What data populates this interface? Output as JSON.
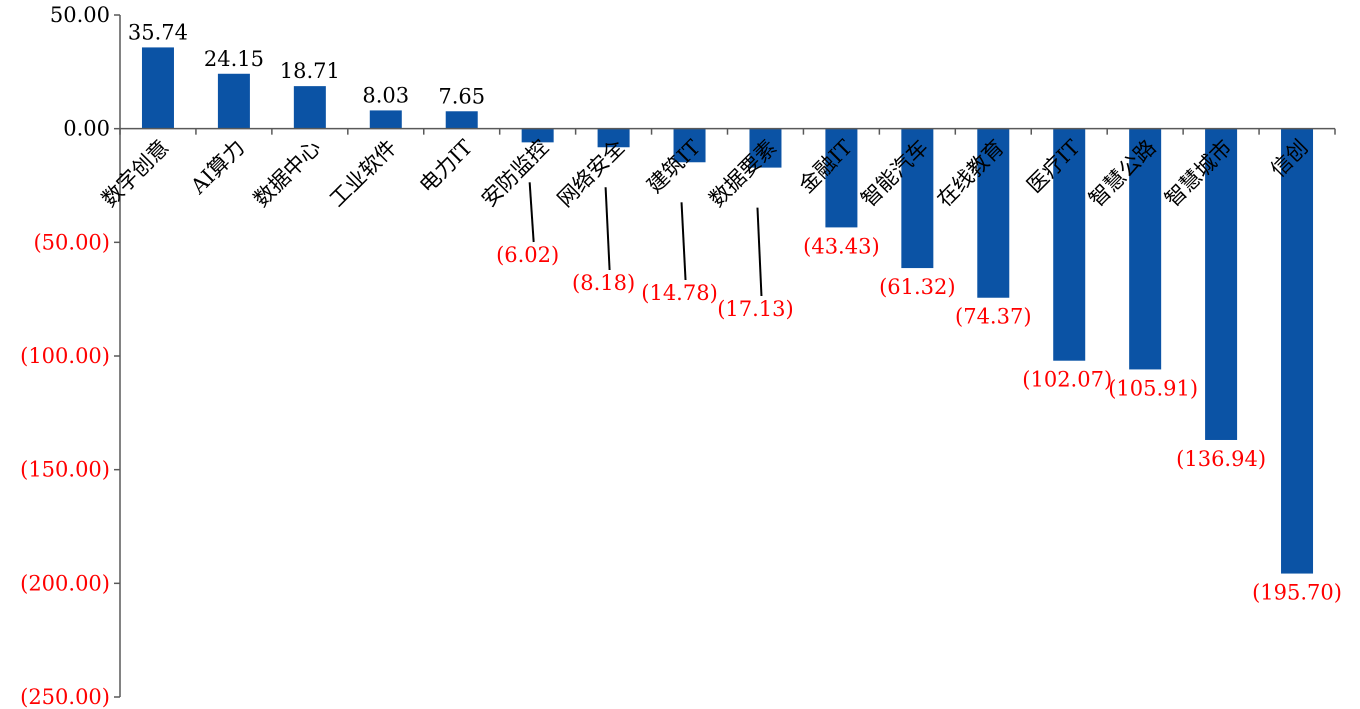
{
  "chart_data": {
    "type": "bar",
    "title": "",
    "xlabel": "",
    "ylabel": "",
    "ylim": [
      -250,
      50
    ],
    "yticks": [
      50,
      0,
      -50,
      -100,
      -150,
      -200,
      -250
    ],
    "ytick_labels": [
      "50.00",
      "0.00",
      "(50.00)",
      "(100.00)",
      "(150.00)",
      "(200.00)",
      "(250.00)"
    ],
    "grid": false,
    "legend": "none",
    "categories": [
      "数字创意",
      "AI算力",
      "数据中心",
      "工业软件",
      "电力IT",
      "安防监控",
      "网络安全",
      "建筑IT",
      "数据要素",
      "金融IT",
      "智能汽车",
      "在线教育",
      "医疗IT",
      "智慧公路",
      "智慧城市",
      "信创"
    ],
    "values": [
      35.74,
      24.15,
      18.71,
      8.03,
      7.65,
      -6.02,
      -8.18,
      -14.78,
      -17.13,
      -43.43,
      -61.32,
      -74.37,
      -102.07,
      -105.91,
      -136.94,
      -195.7
    ],
    "value_labels": [
      "35.74",
      "24.15",
      "18.71",
      "8.03",
      "7.65",
      "(6.02)",
      "(8.18)",
      "(14.78)",
      "(17.13)",
      "(43.43)",
      "(61.32)",
      "(74.37)",
      "(102.07)",
      "(105.91)",
      "(136.94)",
      "(195.70)"
    ],
    "colors": {
      "bar": "#0B53A5",
      "positive_label": "#000000",
      "negative_label": "#FF0000",
      "axis": "#595959"
    }
  }
}
